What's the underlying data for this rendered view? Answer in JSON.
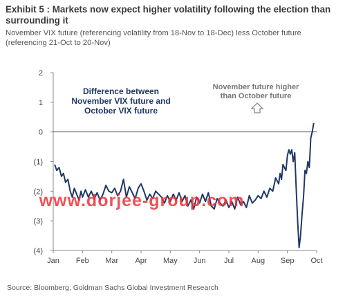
{
  "header": {
    "title": "Exhibit 5 : Markets now expect higher volatility following the election than surrounding it",
    "subtitle": "November VIX future (referencing volatility from 18-Nov to 18-Dec) less October future (referencing 21-Oct to 20-Nov)"
  },
  "source": "Source: Bloomberg, Goldman Sachs Global Investment Research",
  "watermark": "www.dorjee-group.com",
  "annotations": {
    "left_line1": "Difference between",
    "left_line2": "November VIX future and",
    "left_line3": "October VIX future",
    "right_line1": "November future higher",
    "right_line2": "than October future",
    "arrow_icon": "up-arrow-icon"
  },
  "colors": {
    "line": "#1f3864",
    "annotation_left": "#1f3864",
    "annotation_right": "#777777",
    "watermark": "#e8343a",
    "axis": "#888888"
  },
  "chart_data": {
    "type": "line",
    "title": "Exhibit 5 : Markets now expect higher volatility following the election than surrounding it",
    "xlabel": "",
    "ylabel": "",
    "ylim": [
      -4,
      2
    ],
    "xlim": [
      0,
      9
    ],
    "y_ticks": [
      {
        "value": 2,
        "label": "2"
      },
      {
        "value": 1,
        "label": "1"
      },
      {
        "value": 0,
        "label": "0"
      },
      {
        "value": -1,
        "label": "(1)"
      },
      {
        "value": -2,
        "label": "(2)"
      },
      {
        "value": -3,
        "label": "(3)"
      },
      {
        "value": -4,
        "label": "(4)"
      }
    ],
    "x_ticks": [
      {
        "value": 0,
        "label": "Jan"
      },
      {
        "value": 1,
        "label": "Feb"
      },
      {
        "value": 2,
        "label": "Mar"
      },
      {
        "value": 3,
        "label": "Apr"
      },
      {
        "value": 4,
        "label": "May"
      },
      {
        "value": 5,
        "label": "Jun"
      },
      {
        "value": 6,
        "label": "Jul"
      },
      {
        "value": 7,
        "label": "Aug"
      },
      {
        "value": 8,
        "label": "Sep"
      },
      {
        "value": 9,
        "label": "Oct"
      }
    ],
    "grid": false,
    "zero_line": true,
    "series": [
      {
        "x": [
          0.05,
          0.12,
          0.2,
          0.28,
          0.35,
          0.42,
          0.5,
          0.58,
          0.65,
          0.72,
          0.8,
          0.88,
          0.95,
          1.0,
          1.1,
          1.2,
          1.3,
          1.4,
          1.5,
          1.6,
          1.7,
          1.8,
          1.9,
          2.0,
          2.1,
          2.2,
          2.3,
          2.4,
          2.5,
          2.6,
          2.7,
          2.8,
          2.9,
          3.0,
          3.1,
          3.2,
          3.3,
          3.4,
          3.5,
          3.6,
          3.7,
          3.8,
          3.9,
          4.0,
          4.1,
          4.2,
          4.3,
          4.4,
          4.5,
          4.6,
          4.7,
          4.8,
          4.9,
          5.0,
          5.1,
          5.2,
          5.3,
          5.4,
          5.5,
          5.6,
          5.7,
          5.8,
          5.9,
          6.0,
          6.1,
          6.2,
          6.3,
          6.4,
          6.5,
          6.6,
          6.7,
          6.8,
          6.9,
          7.0,
          7.1,
          7.2,
          7.3,
          7.4,
          7.5,
          7.6,
          7.7,
          7.75,
          7.8,
          7.85,
          7.9,
          7.95,
          8.0,
          8.05,
          8.1,
          8.15,
          8.2,
          8.25,
          8.3,
          8.35,
          8.4,
          8.45,
          8.5,
          8.55,
          8.6,
          8.65,
          8.7,
          8.75,
          8.8,
          8.85,
          8.9
        ],
        "values": [
          -1.1,
          -1.3,
          -1.2,
          -1.5,
          -1.4,
          -1.7,
          -1.6,
          -2.0,
          -2.2,
          -1.9,
          -2.1,
          -2.3,
          -2.0,
          -2.2,
          -1.95,
          -2.2,
          -2.0,
          -2.25,
          -2.05,
          -2.3,
          -2.1,
          -1.8,
          -2.0,
          -2.05,
          -1.9,
          -2.15,
          -2.0,
          -1.6,
          -2.2,
          -1.85,
          -2.05,
          -2.25,
          -1.9,
          -1.75,
          -2.0,
          -2.3,
          -2.1,
          -2.25,
          -2.0,
          -2.1,
          -2.2,
          -2.4,
          -2.15,
          -2.35,
          -2.1,
          -2.3,
          -2.05,
          -2.35,
          -2.15,
          -2.5,
          -2.3,
          -2.6,
          -2.2,
          -2.4,
          -2.1,
          -2.35,
          -2.05,
          -2.5,
          -2.6,
          -2.25,
          -2.4,
          -2.5,
          -2.3,
          -2.55,
          -2.35,
          -2.6,
          -2.2,
          -2.45,
          -2.35,
          -2.55,
          -2.15,
          -2.4,
          -2.3,
          -2.15,
          -2.25,
          -2.0,
          -2.2,
          -1.9,
          -2.0,
          -1.55,
          -1.75,
          -1.4,
          -1.6,
          -1.1,
          -1.2,
          -1.3,
          -0.8,
          -0.6,
          -0.75,
          -0.6,
          -1.0,
          -0.7,
          -1.9,
          -3.0,
          -3.9,
          -3.5,
          -2.8,
          -2.2,
          -1.3,
          -1.4,
          -1.0,
          -1.2,
          -0.2,
          0.0,
          0.3
        ]
      }
    ]
  }
}
